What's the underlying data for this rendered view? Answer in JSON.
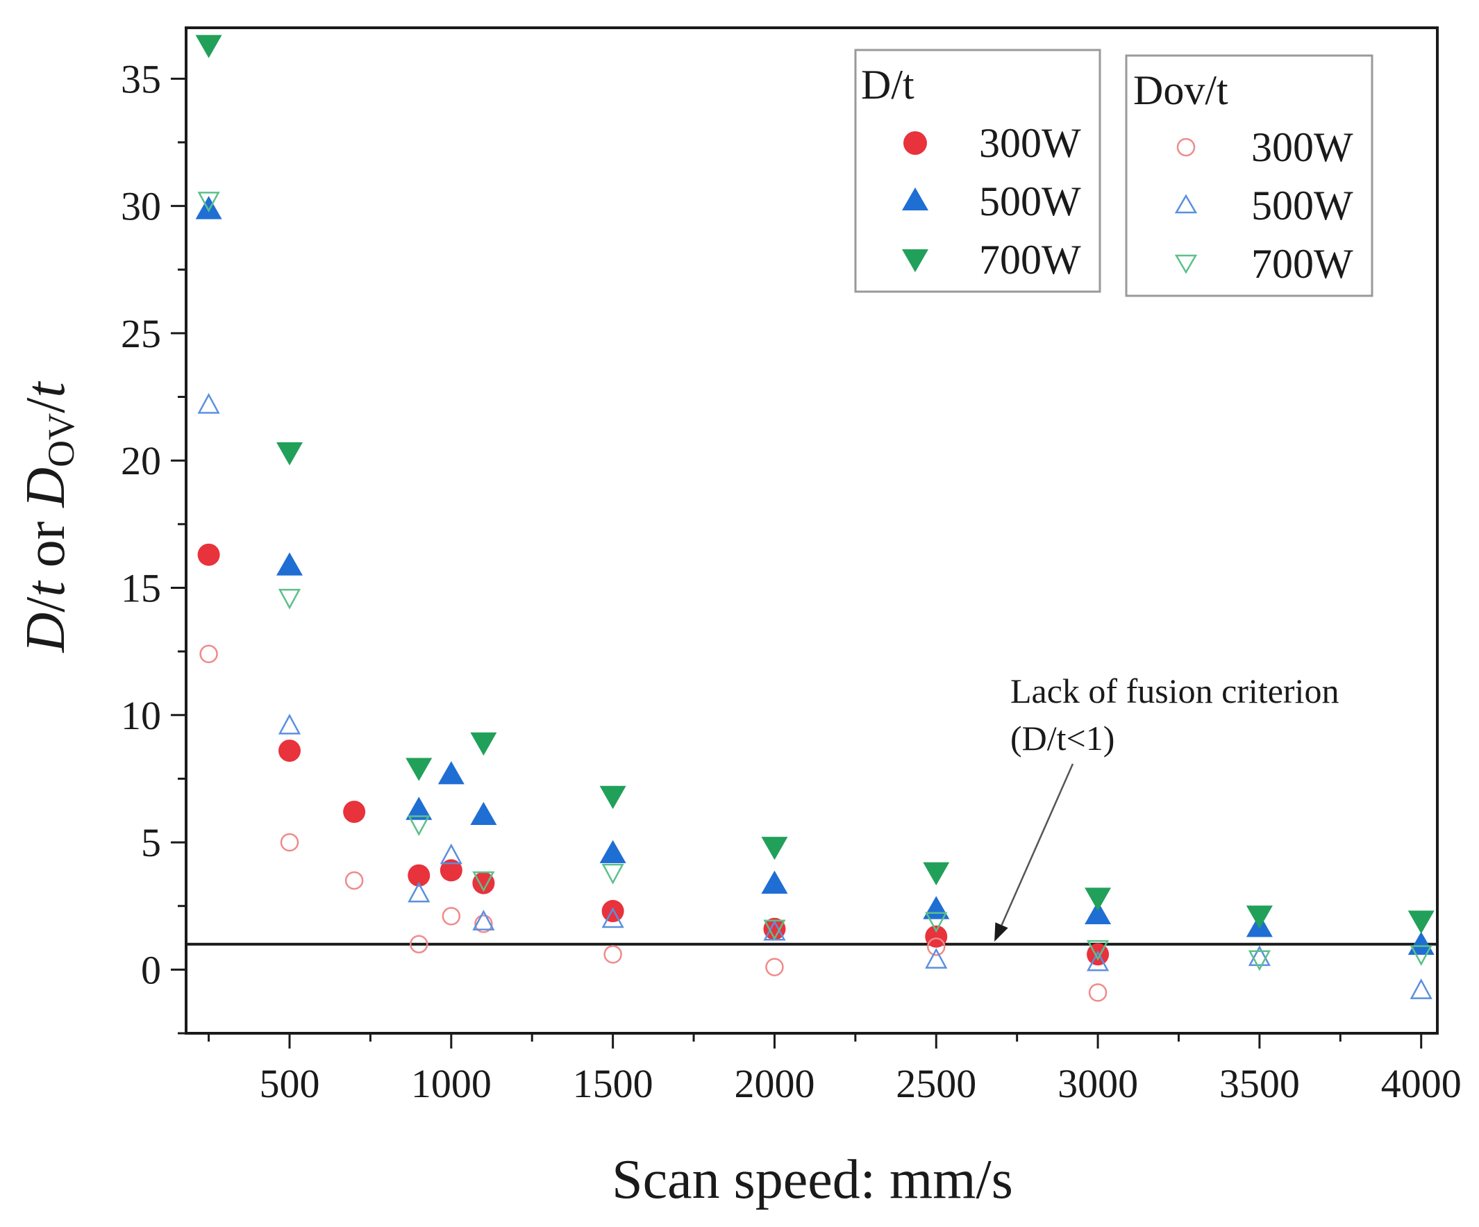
{
  "chart_data": {
    "type": "scatter",
    "xlabel": "Scan speed: mm/s",
    "ylabel": {
      "p1": "D",
      "p2": "/",
      "p3": "t",
      "p4": " or ",
      "p5": "D",
      "sub": "OV",
      "p6": "/",
      "p7": "t"
    },
    "xlim": [
      180,
      4050
    ],
    "ylim": [
      -2.5,
      37
    ],
    "x_ticks": [
      500,
      1000,
      1500,
      2000,
      2500,
      3000,
      3500,
      4000
    ],
    "y_ticks": [
      0,
      5,
      10,
      15,
      20,
      25,
      30,
      35
    ],
    "threshold_line": {
      "y": 1
    },
    "annotation": {
      "line1": "Lack of fusion criterion",
      "line2": "(D/t<1)",
      "arrow_target": {
        "x": 2680,
        "y": 1.1
      }
    },
    "legend": [
      {
        "title": "D/t",
        "placement": "top-right",
        "entries": [
          "300W",
          "500W",
          "700W"
        ]
      },
      {
        "title": "Dov/t",
        "placement": "top-right",
        "entries": [
          "300W",
          "500W",
          "700W"
        ]
      }
    ],
    "series": [
      {
        "group": "D/t",
        "label": "300W",
        "marker": "circle",
        "filled": true,
        "color": "#e8323c",
        "points": [
          [
            250,
            16.3
          ],
          [
            500,
            8.6
          ],
          [
            700,
            6.2
          ],
          [
            900,
            3.7
          ],
          [
            1000,
            3.9
          ],
          [
            1100,
            3.4
          ],
          [
            1500,
            2.3
          ],
          [
            2000,
            1.6
          ],
          [
            2500,
            1.3
          ],
          [
            3000,
            0.6
          ]
        ]
      },
      {
        "group": "D/t",
        "label": "500W",
        "marker": "triangle-up",
        "filled": true,
        "color": "#1f6ed4",
        "points": [
          [
            250,
            29.9
          ],
          [
            500,
            15.9
          ],
          [
            900,
            6.3
          ],
          [
            1000,
            7.7
          ],
          [
            1100,
            6.1
          ],
          [
            1500,
            4.6
          ],
          [
            2000,
            3.4
          ],
          [
            2500,
            2.4
          ],
          [
            3000,
            2.2
          ],
          [
            3500,
            1.7
          ],
          [
            4000,
            1.0
          ]
        ]
      },
      {
        "group": "D/t",
        "label": "700W",
        "marker": "triangle-down",
        "filled": true,
        "color": "#21a05a",
        "points": [
          [
            250,
            36.3
          ],
          [
            500,
            20.3
          ],
          [
            900,
            7.9
          ],
          [
            1100,
            8.9
          ],
          [
            1500,
            6.8
          ],
          [
            2000,
            4.8
          ],
          [
            2500,
            3.8
          ],
          [
            3000,
            2.8
          ],
          [
            3500,
            2.1
          ],
          [
            4000,
            1.9
          ]
        ]
      },
      {
        "group": "Dov/t",
        "label": "300W",
        "marker": "circle",
        "filled": false,
        "color": "#f08a8a",
        "points": [
          [
            250,
            12.4
          ],
          [
            500,
            5.0
          ],
          [
            700,
            3.5
          ],
          [
            900,
            1.0
          ],
          [
            1000,
            2.1
          ],
          [
            1100,
            1.8
          ],
          [
            1500,
            0.6
          ],
          [
            2000,
            0.1
          ],
          [
            2500,
            0.9
          ],
          [
            3000,
            -0.9
          ]
        ]
      },
      {
        "group": "Dov/t",
        "label": "500W",
        "marker": "triangle-up",
        "filled": false,
        "color": "#5b8fe0",
        "points": [
          [
            250,
            22.2
          ],
          [
            500,
            9.6
          ],
          [
            900,
            3.0
          ],
          [
            1000,
            4.5
          ],
          [
            1100,
            1.9
          ],
          [
            1500,
            2.0
          ],
          [
            2000,
            1.5
          ],
          [
            2500,
            0.4
          ],
          [
            3000,
            0.3
          ],
          [
            3500,
            0.5
          ],
          [
            4000,
            -0.8
          ]
        ]
      },
      {
        "group": "Dov/t",
        "label": "700W",
        "marker": "triangle-down",
        "filled": false,
        "color": "#5cc08a",
        "points": [
          [
            250,
            30.2
          ],
          [
            500,
            14.6
          ],
          [
            900,
            5.7
          ],
          [
            1100,
            3.5
          ],
          [
            1500,
            3.8
          ],
          [
            2000,
            1.6
          ],
          [
            2500,
            1.9
          ],
          [
            3000,
            0.8
          ],
          [
            3500,
            0.4
          ],
          [
            4000,
            0.6
          ]
        ]
      }
    ]
  }
}
